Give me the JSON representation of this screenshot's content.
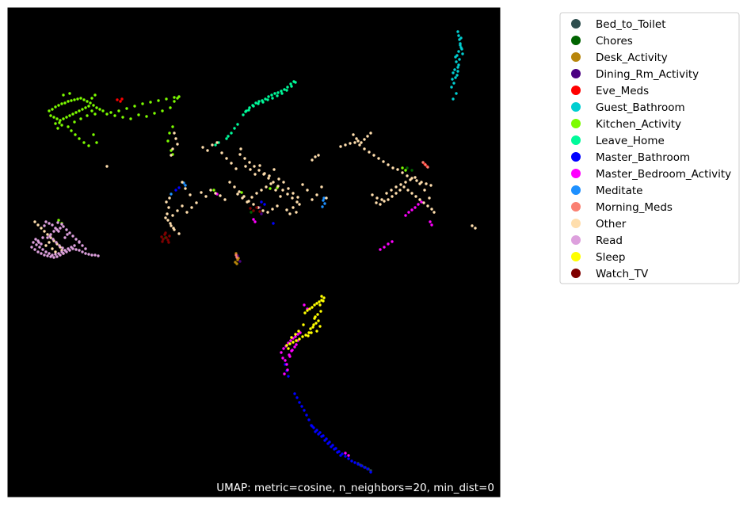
{
  "chart_data": {
    "type": "scatter",
    "title": "",
    "xlabel": "",
    "ylabel": "",
    "annotation": "UMAP: metric=cosine, n_neighbors=20, min_dist=0",
    "axes_visible": false,
    "background": "#000000",
    "grid": false,
    "legend_position": "outside-right",
    "series": [
      {
        "name": "Bed_to_Toilet",
        "color": "#2f4f4f",
        "x": [
          452,
          457,
          461,
          465,
          468,
          455
        ],
        "y": [
          585,
          588,
          590,
          592,
          594,
          587
        ]
      },
      {
        "name": "Chores",
        "color": "#006400",
        "x": [
          514,
          520,
          209,
          317
        ],
        "y": [
          212,
          215,
          300,
          268
        ]
      },
      {
        "name": "Desk_Activity",
        "color": "#b8860b",
        "x": [
          298,
          299,
          300,
          297,
          301,
          299
        ],
        "y": [
          320,
          324,
          328,
          331,
          326,
          333
        ]
      },
      {
        "name": "Dining_Rm_Activity",
        "color": "#4b0082",
        "x": [
          300,
          303,
          328,
          330
        ],
        "y": [
          323,
          330,
          262,
          270
        ]
      },
      {
        "name": "Eve_Meds",
        "color": "#ff0000",
        "x": [
          148,
          152,
          154,
          536,
          539
        ],
        "y": [
          126,
          128,
          125,
          207,
          210
        ]
      },
      {
        "name": "Guest_Bathroom",
        "color": "#00ced1",
        "x": [
          578,
          579,
          580,
          581,
          582,
          579,
          577,
          575,
          576,
          578,
          574,
          572,
          571,
          570,
          580,
          583,
          584,
          577,
          573,
          576,
          582,
          581,
          579,
          578,
          575,
          572
        ],
        "y": [
          40,
          45,
          50,
          55,
          60,
          65,
          70,
          72,
          78,
          85,
          88,
          92,
          100,
          110,
          75,
          62,
          68,
          95,
          105,
          118,
          48,
          57,
          82,
          90,
          98,
          125
        ]
      },
      {
        "name": "Kitchen_Activity",
        "color": "#7cfc00",
        "x": [
          62,
          66,
          70,
          74,
          78,
          82,
          86,
          90,
          94,
          98,
          102,
          106,
          110,
          114,
          118,
          122,
          126,
          130,
          140,
          150,
          160,
          170,
          180,
          190,
          200,
          210,
          220,
          226,
          64,
          68,
          72,
          76,
          80,
          84,
          88,
          92,
          96,
          100,
          104,
          108,
          112,
          116,
          120,
          175,
          185,
          195,
          205,
          215,
          218,
          214,
          212,
          216,
          70,
          78,
          86,
          94,
          102,
          110,
          118,
          122,
          90,
          95,
          100,
          106,
          112,
          75,
          73,
          220,
          224,
          165,
          155,
          145,
          135,
          80,
          88,
          120,
          116,
          350,
          508,
          512,
          74,
          78,
          218,
          270,
          341,
          305
        ],
        "y": [
          140,
          138,
          135,
          133,
          131,
          130,
          128,
          127,
          126,
          125,
          124,
          126,
          128,
          130,
          133,
          136,
          138,
          140,
          142,
          140,
          137,
          134,
          131,
          129,
          127,
          125,
          123,
          122,
          146,
          148,
          150,
          152,
          150,
          148,
          146,
          144,
          142,
          140,
          138,
          136,
          134,
          140,
          144,
          145,
          147,
          143,
          140,
          136,
          160,
          168,
          178,
          190,
          156,
          158,
          160,
          154,
          150,
          146,
          170,
          180,
          165,
          170,
          175,
          180,
          184,
          155,
          162,
          128,
          124,
          150,
          148,
          146,
          144,
          120,
          118,
          120,
          124,
          237,
          212,
          215,
          278,
          282,
          195,
          240,
          238,
          243
        ]
      },
      {
        "name": "Leave_Home",
        "color": "#00fa9a",
        "x": [
          307,
          311,
          315,
          319,
          323,
          327,
          331,
          335,
          339,
          343,
          347,
          351,
          355,
          359,
          363,
          367,
          371,
          373,
          310,
          314,
          320,
          326,
          332,
          338,
          344,
          350,
          356,
          362,
          368,
          300,
          296,
          292,
          288,
          286,
          272,
          276
        ],
        "y": [
          145,
          140,
          136,
          133,
          130,
          128,
          127,
          125,
          122,
          120,
          118,
          117,
          115,
          113,
          110,
          106,
          103,
          104,
          141,
          139,
          134,
          131,
          129,
          126,
          124,
          121,
          118,
          114,
          109,
          157,
          162,
          168,
          172,
          175,
          183,
          180
        ]
      },
      {
        "name": "Master_Bathroom",
        "color": "#0000ff",
        "x": [
          372,
          375,
          378,
          381,
          384,
          387,
          390,
          393,
          396,
          400,
          404,
          408,
          412,
          416,
          420,
          424,
          428,
          432,
          436,
          440,
          444,
          448,
          452,
          456,
          460,
          464,
          468,
          402,
          406,
          410,
          414,
          418,
          422,
          426,
          430,
          398,
          394,
          345,
          222,
          226,
          330,
          334,
          360,
          362,
          364
        ],
        "y": [
          497,
          502,
          508,
          513,
          518,
          524,
          530,
          537,
          540,
          543,
          546,
          550,
          554,
          558,
          562,
          566,
          570,
          573,
          576,
          579,
          582,
          584,
          586,
          588,
          590,
          592,
          596,
          548,
          551,
          556,
          560,
          564,
          567,
          571,
          575,
          545,
          538,
          282,
          240,
          237,
          255,
          258,
          460,
          468,
          475
        ]
      },
      {
        "name": "Master_Bedroom_Activity",
        "color": "#ff00ff",
        "x": [
          355,
          358,
          361,
          364,
          367,
          370,
          373,
          376,
          379,
          360,
          362,
          366,
          368,
          372,
          374,
          376,
          363,
          359,
          357,
          365,
          369,
          512,
          516,
          520,
          524,
          528,
          532,
          543,
          545,
          480,
          485,
          490,
          495,
          436,
          440,
          320,
          322,
          274,
          384,
          388
        ],
        "y": [
          445,
          440,
          437,
          433,
          430,
          427,
          425,
          422,
          420,
          455,
          460,
          450,
          443,
          438,
          435,
          430,
          467,
          472,
          452,
          448,
          442,
          272,
          268,
          265,
          262,
          258,
          255,
          280,
          284,
          315,
          312,
          308,
          305,
          572,
          575,
          277,
          280,
          245,
          385,
          390
        ]
      },
      {
        "name": "Meditate",
        "color": "#1e90ff",
        "x": [
          232,
          234,
          408,
          410,
          407,
          409,
          216
        ],
        "y": [
          231,
          234,
          253,
          257,
          261,
          250,
          245
        ]
      },
      {
        "name": "Morning_Meds",
        "color": "#fa8072",
        "x": [
          534,
          537,
          540,
          298,
          299
        ],
        "y": [
          205,
          208,
          211,
          322,
          325
        ]
      },
      {
        "name": "Other",
        "color": "#ffdead",
        "x": [
          256,
          262,
          268,
          274,
          280,
          286,
          292,
          298,
          304,
          310,
          316,
          322,
          328,
          334,
          340,
          346,
          352,
          358,
          364,
          370,
          376,
          382,
          388,
          394,
          400,
          406,
          412,
          300,
          306,
          312,
          318,
          324,
          330,
          336,
          342,
          348,
          354,
          303,
          309,
          315,
          321,
          327,
          333,
          339,
          345,
          351,
          357,
          363,
          369,
          375,
          290,
          296,
          302,
          308,
          314,
          320,
          326,
          332,
          338,
          344,
          350,
          284,
          278,
          272,
          266,
          260,
          254,
          248,
          242,
          236,
          230,
          224,
          218,
          212,
          210,
          214,
          216,
          220,
          226,
          213,
          211,
          209,
          215,
          219,
          430,
          436,
          442,
          448,
          454,
          460,
          466,
          472,
          478,
          484,
          490,
          496,
          502,
          508,
          514,
          520,
          526,
          532,
          538,
          544,
          470,
          476,
          482,
          488,
          494,
          500,
          506,
          512,
          518,
          524,
          530,
          536,
          542,
          475,
          480,
          485,
          490,
          495,
          500,
          505,
          510,
          515,
          520,
          525,
          530,
          535,
          540,
          545,
          548,
          446,
          450,
          452,
          456,
          460,
          464,
          468,
          220,
          222,
          224,
          218,
          216,
          44,
          48,
          52,
          56,
          60,
          64,
          68,
          72,
          76,
          78,
          80,
          70,
          66,
          58,
          62,
          596,
          600,
          135,
          230,
          234,
          240,
          370,
          374,
          378,
          362,
          366,
          394,
          398,
          402
        ],
        "y": [
          186,
          190,
          183,
          180,
          193,
          200,
          206,
          213,
          188,
          210,
          214,
          220,
          209,
          219,
          222,
          214,
          226,
          230,
          238,
          244,
          249,
          233,
          240,
          252,
          246,
          236,
          250,
          245,
          250,
          255,
          249,
          244,
          240,
          236,
          232,
          240,
          248,
          195,
          200,
          205,
          210,
          215,
          220,
          225,
          230,
          235,
          240,
          245,
          250,
          255,
          230,
          236,
          242,
          248,
          254,
          258,
          262,
          266,
          268,
          264,
          260,
          252,
          247,
          244,
          240,
          248,
          243,
          256,
          262,
          268,
          260,
          266,
          272,
          278,
          255,
          250,
          285,
          290,
          295,
          262,
          270,
          275,
          282,
          288,
          185,
          183,
          181,
          180,
          183,
          188,
          192,
          196,
          200,
          204,
          208,
          212,
          214,
          218,
          222,
          225,
          228,
          230,
          232,
          234,
          246,
          250,
          252,
          244,
          240,
          236,
          233,
          230,
          227,
          224,
          232,
          240,
          250,
          256,
          258,
          254,
          252,
          248,
          244,
          240,
          236,
          240,
          244,
          248,
          252,
          256,
          260,
          264,
          268,
          170,
          175,
          178,
          180,
          176,
          172,
          168,
          168,
          175,
          182,
          188,
          196,
          280,
          284,
          288,
          292,
          296,
          300,
          304,
          308,
          312,
          316,
          320,
          318,
          314,
          310,
          306,
          285,
          288,
          210,
          230,
          238,
          246,
          262,
          268,
          258,
          265,
          270,
          202,
          198,
          196
        ]
      },
      {
        "name": "Read",
        "color": "#dda0dd",
        "x": [
          40,
          44,
          48,
          52,
          56,
          60,
          64,
          68,
          72,
          76,
          80,
          84,
          88,
          92,
          96,
          100,
          104,
          108,
          112,
          116,
          120,
          124,
          42,
          46,
          50,
          54,
          58,
          62,
          66,
          70,
          74,
          78,
          82,
          86,
          90,
          94,
          60,
          64,
          68,
          72,
          76,
          80,
          84,
          88,
          92,
          96,
          100,
          104,
          108,
          56,
          58,
          62,
          66,
          70,
          74,
          54,
          48,
          52,
          63,
          67,
          71,
          75,
          79,
          45,
          49,
          82,
          85,
          78,
          73,
          100
        ],
        "y": [
          312,
          315,
          318,
          320,
          322,
          323,
          324,
          325,
          324,
          322,
          320,
          318,
          316,
          314,
          315,
          316,
          318,
          320,
          321,
          322,
          322,
          323,
          306,
          309,
          312,
          315,
          318,
          320,
          322,
          321,
          320,
          318,
          316,
          314,
          312,
          310,
          300,
          296,
          292,
          290,
          288,
          286,
          290,
          294,
          298,
          302,
          306,
          310,
          314,
          285,
          280,
          282,
          284,
          288,
          292,
          300,
          304,
          308,
          298,
          302,
          306,
          310,
          313,
          302,
          306,
          300,
          296,
          283,
          281,
          305
        ]
      },
      {
        "name": "Sleep",
        "color": "#ffff00",
        "x": [
          385,
          388,
          391,
          394,
          397,
          400,
          403,
          406,
          409,
          398,
          402,
          396,
          392,
          400,
          404,
          390,
          386,
          382,
          378,
          374,
          370,
          366,
          362,
          397,
          401,
          405,
          399,
          395,
          393,
          389,
          383,
          377,
          373,
          368,
          364,
          404,
          408,
          406
        ],
        "y": [
          395,
          392,
          390,
          388,
          385,
          383,
          381,
          379,
          376,
          400,
          405,
          410,
          415,
          418,
          412,
          420,
          423,
          425,
          428,
          430,
          432,
          434,
          436,
          402,
          397,
          393,
          408,
          413,
          420,
          424,
          410,
          418,
          422,
          426,
          440,
          385,
          380,
          374
        ]
      },
      {
        "name": "Watch_TV",
        "color": "#800000",
        "x": [
          204,
          206,
          208,
          210,
          212,
          214,
          205,
          209,
          213,
          316,
          320,
          324,
          328
        ],
        "y": [
          299,
          302,
          296,
          300,
          303,
          298,
          305,
          294,
          306,
          263,
          266,
          262,
          267
        ]
      }
    ]
  }
}
